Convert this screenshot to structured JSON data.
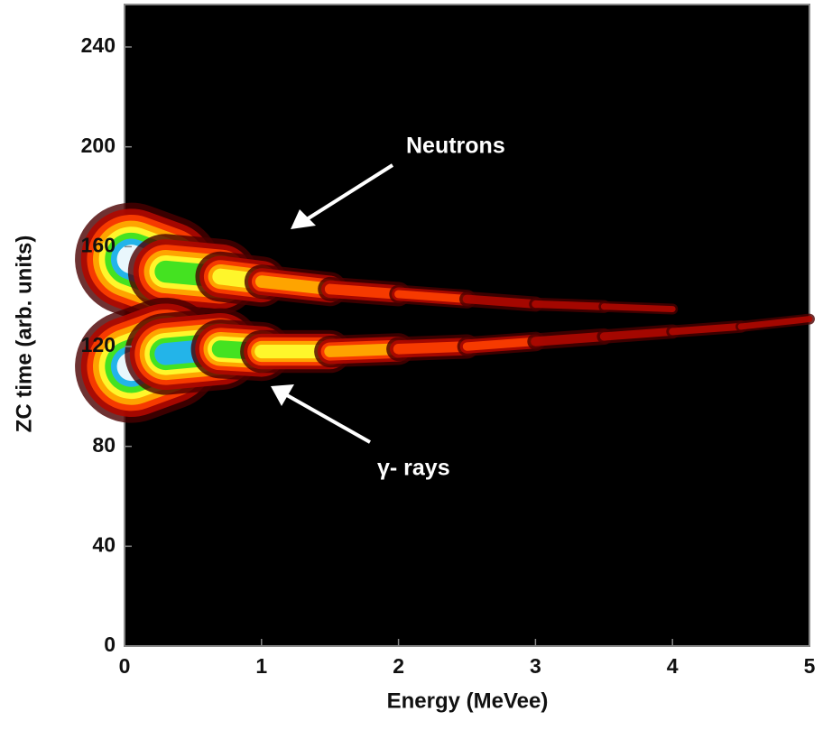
{
  "chart_data": {
    "type": "density",
    "xlabel": "Energy (MeVee)",
    "ylabel": "ZC time (arb. units)",
    "xlim": [
      0,
      5
    ],
    "ylim": [
      0,
      257
    ],
    "xticks": [
      0,
      1,
      2,
      3,
      4,
      5
    ],
    "yticks": [
      0,
      40,
      80,
      120,
      160,
      200,
      240
    ],
    "background": "#000000",
    "colormap": [
      "#4a0000",
      "#b00800",
      "#ff4000",
      "#ffb000",
      "#ffff30",
      "#30e020",
      "#20b0ff",
      "#ffffff"
    ],
    "series": [
      {
        "name": "Neutrons",
        "x": [
          0.05,
          0.3,
          0.7,
          1,
          1.5,
          2,
          2.5,
          3,
          3.5,
          4
        ],
        "values": [
          155,
          150,
          148,
          146,
          143,
          141,
          139,
          137,
          136,
          135
        ]
      },
      {
        "name": "γ- rays",
        "x": [
          0.05,
          0.3,
          0.7,
          1,
          1.5,
          2,
          2.5,
          3,
          3.5,
          4,
          4.5,
          5
        ],
        "values": [
          112,
          117,
          119,
          118,
          118,
          119,
          120,
          122,
          124,
          126,
          128,
          131
        ]
      }
    ]
  }
}
